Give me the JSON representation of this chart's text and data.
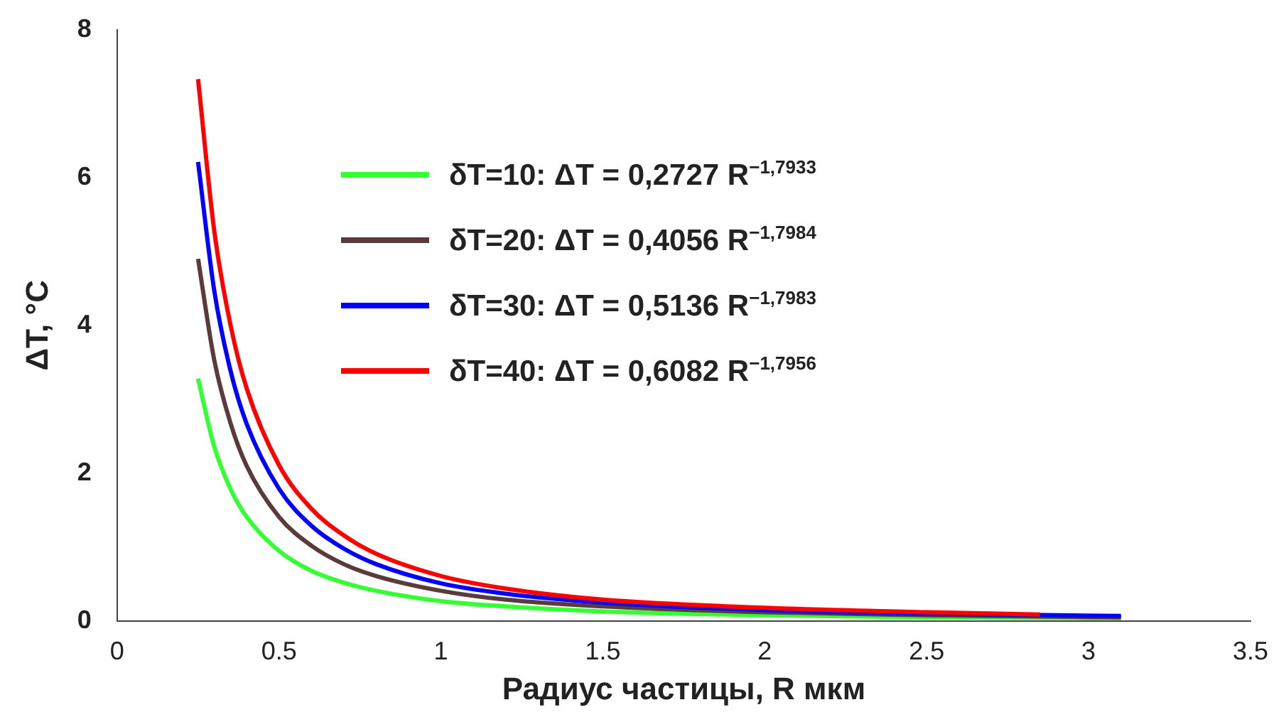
{
  "chart_data": {
    "type": "line",
    "xlabel": "Радиус частицы, R мкм",
    "ylabel": "ΔT, °C",
    "xlim": [
      0,
      3.5
    ],
    "xticks": [
      0,
      0.5,
      1,
      1.5,
      2,
      2.5,
      3,
      3.5
    ],
    "ylim": [
      0,
      8
    ],
    "yticks": [
      0,
      2,
      4,
      6,
      8
    ],
    "grid": false,
    "legend": "top",
    "marker": "none",
    "line_style": "solid",
    "x": [
      0.25,
      0.3,
      0.35,
      0.4,
      0.5,
      0.6,
      0.7,
      0.8,
      1,
      1.2,
      1.5,
      2,
      2.5,
      3.1
    ],
    "series": [
      {
        "name": "δT=10: ΔT = 0,2727 R$^{−1,7933}$",
        "color": "#33ff33",
        "values": [
          3.28,
          2.36,
          1.79,
          1.41,
          0.95,
          0.68,
          0.52,
          0.41,
          0.27,
          0.2,
          0.13,
          0.08,
          0.05,
          0.04
        ]
      },
      {
        "name": "δT=20: ΔT = 0,4056 R$^{−1,7984}$",
        "color": "#5a3a3a",
        "values": [
          4.9,
          3.53,
          2.68,
          2.1,
          1.41,
          1.02,
          0.77,
          0.61,
          0.41,
          0.29,
          0.2,
          0.12,
          0.08,
          0.05
        ]
      },
      {
        "name": "δT=30: ΔT = 0,5136 R$^{−1,7983}$",
        "color": "#0000ff",
        "values": [
          6.21,
          4.47,
          3.39,
          2.67,
          1.79,
          1.29,
          0.98,
          0.77,
          0.51,
          0.37,
          0.25,
          0.15,
          0.1,
          0.07
        ]
      },
      {
        "name": "δT=40: ΔT = 0,6082 R$^{−1,7956}$",
        "color": "#ff0000",
        "x": [
          0.25,
          0.3,
          0.35,
          0.4,
          0.5,
          0.6,
          0.7,
          0.8,
          1,
          1.2,
          1.5,
          2,
          2.5,
          2.85
        ],
        "values": [
          7.33,
          5.28,
          4.01,
          3.15,
          2.11,
          1.52,
          1.16,
          0.91,
          0.61,
          0.44,
          0.29,
          0.18,
          0.12,
          0.09
        ]
      }
    ]
  }
}
